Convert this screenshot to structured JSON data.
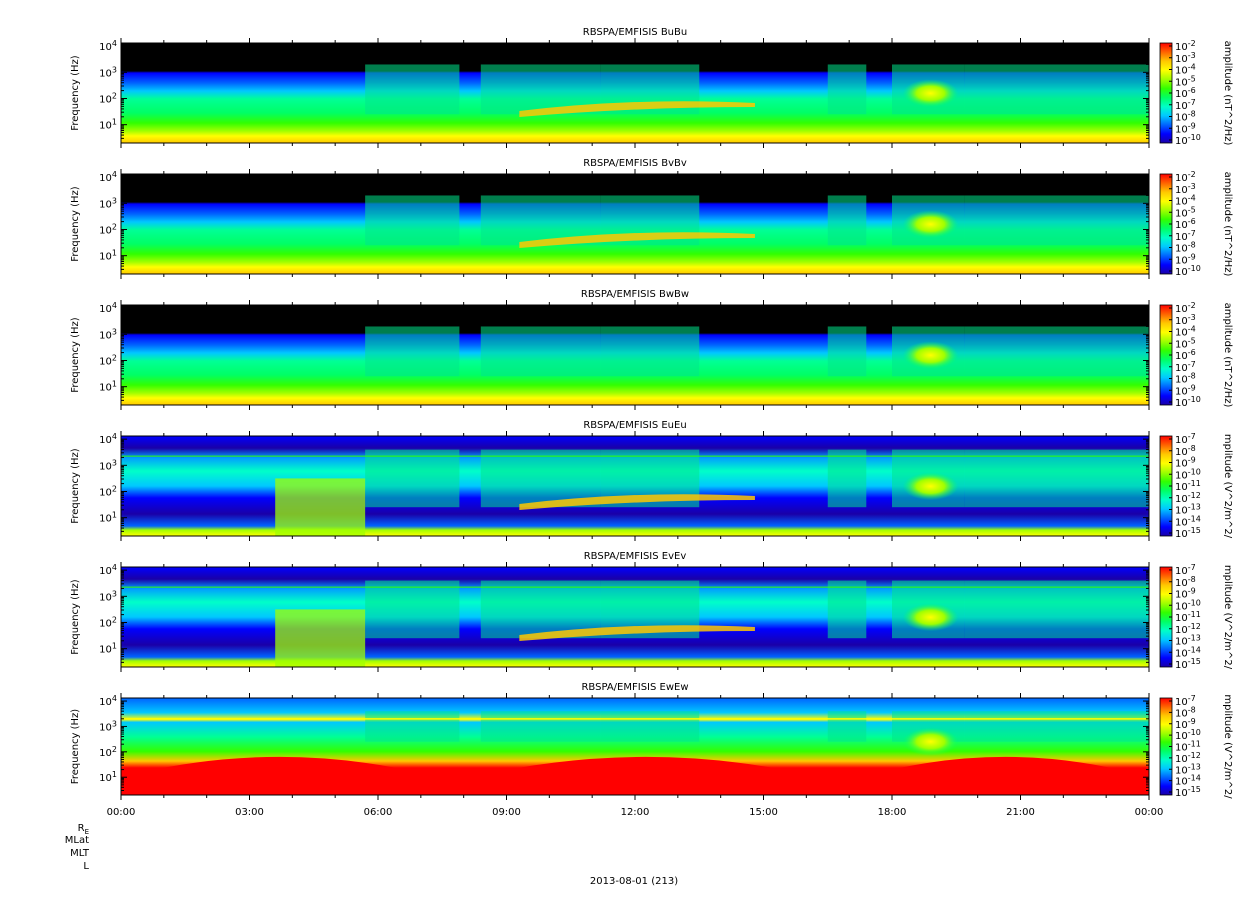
{
  "page": {
    "date_label": "2013-08-01 (213)",
    "ephemeris_labels": [
      "R_E",
      "MLat",
      "MLT",
      "L"
    ]
  },
  "colors": {
    "colormap": [
      "#1a00a8",
      "#0000ff",
      "#0064ff",
      "#00c8ff",
      "#00ffc8",
      "#00ff64",
      "#32ff00",
      "#a0ff00",
      "#ffff00",
      "#ffc800",
      "#ff6400",
      "#ff0000"
    ],
    "background": "#000000"
  },
  "chart_data": [
    {
      "type": "heatmap",
      "title": "RBSPA/EMFISIS  BuBu",
      "ylabel": "Frequency (Hz)",
      "y_scale": "log",
      "y_ticks": [
        "10^1",
        "10^2",
        "10^3",
        "10^4"
      ],
      "x_ticks": [
        "00:00",
        "03:00",
        "06:00",
        "09:00",
        "12:00",
        "15:00",
        "18:00",
        "21:00",
        "00:00"
      ],
      "colorbar_label": "amplitude (nT^2/Hz)",
      "colorbar_ticks": [
        "10^-2",
        "10^-3",
        "10^-4",
        "10^-5",
        "10^-6",
        "10^-7",
        "10^-8",
        "10^-9",
        "10^-10"
      ]
    },
    {
      "type": "heatmap",
      "title": "RBSPA/EMFISIS  BvBv",
      "ylabel": "Frequency (Hz)",
      "y_scale": "log",
      "y_ticks": [
        "10^1",
        "10^2",
        "10^3",
        "10^4"
      ],
      "x_ticks": [
        "00:00",
        "03:00",
        "06:00",
        "09:00",
        "12:00",
        "15:00",
        "18:00",
        "21:00",
        "00:00"
      ],
      "colorbar_label": "amplitude (nT^2/Hz)",
      "colorbar_ticks": [
        "10^-2",
        "10^-3",
        "10^-4",
        "10^-5",
        "10^-6",
        "10^-7",
        "10^-8",
        "10^-9",
        "10^-10"
      ]
    },
    {
      "type": "heatmap",
      "title": "RBSPA/EMFISIS  BwBw",
      "ylabel": "Frequency (Hz)",
      "y_scale": "log",
      "y_ticks": [
        "10^1",
        "10^2",
        "10^3",
        "10^4"
      ],
      "x_ticks": [
        "00:00",
        "03:00",
        "06:00",
        "09:00",
        "12:00",
        "15:00",
        "18:00",
        "21:00",
        "00:00"
      ],
      "colorbar_label": "amplitude (nT^2/Hz)",
      "colorbar_ticks": [
        "10^-2",
        "10^-3",
        "10^-4",
        "10^-5",
        "10^-6",
        "10^-7",
        "10^-8",
        "10^-9",
        "10^-10"
      ]
    },
    {
      "type": "heatmap",
      "title": "RBSPA/EMFISIS  EuEu",
      "ylabel": "Frequency (Hz)",
      "y_scale": "log",
      "y_ticks": [
        "10^1",
        "10^2",
        "10^3",
        "10^4"
      ],
      "x_ticks": [
        "00:00",
        "03:00",
        "06:00",
        "09:00",
        "12:00",
        "15:00",
        "18:00",
        "21:00",
        "00:00"
      ],
      "colorbar_label": "mplitude (V^2/m^2/",
      "colorbar_ticks": [
        "10^-7",
        "10^-8",
        "10^-9",
        "10^-10",
        "10^-11",
        "10^-12",
        "10^-13",
        "10^-14",
        "10^-15"
      ]
    },
    {
      "type": "heatmap",
      "title": "RBSPA/EMFISIS  EvEv",
      "ylabel": "Frequency (Hz)",
      "y_scale": "log",
      "y_ticks": [
        "10^1",
        "10^2",
        "10^3",
        "10^4"
      ],
      "x_ticks": [
        "00:00",
        "03:00",
        "06:00",
        "09:00",
        "12:00",
        "15:00",
        "18:00",
        "21:00",
        "00:00"
      ],
      "colorbar_label": "mplitude (V^2/m^2/",
      "colorbar_ticks": [
        "10^-7",
        "10^-8",
        "10^-9",
        "10^-10",
        "10^-11",
        "10^-12",
        "10^-13",
        "10^-14",
        "10^-15"
      ]
    },
    {
      "type": "heatmap",
      "title": "RBSPA/EMFISIS  EwEw",
      "ylabel": "Frequency (Hz)",
      "y_scale": "log",
      "y_ticks": [
        "10^1",
        "10^2",
        "10^3",
        "10^4"
      ],
      "x_ticks": [
        "00:00",
        "03:00",
        "06:00",
        "09:00",
        "12:00",
        "15:00",
        "18:00",
        "21:00",
        "00:00"
      ],
      "colorbar_label": "mplitude (V^2/m^2/",
      "colorbar_ticks": [
        "10^-7",
        "10^-8",
        "10^-9",
        "10^-10",
        "10^-11",
        "10^-12",
        "10^-13",
        "10^-14",
        "10^-15"
      ]
    }
  ]
}
